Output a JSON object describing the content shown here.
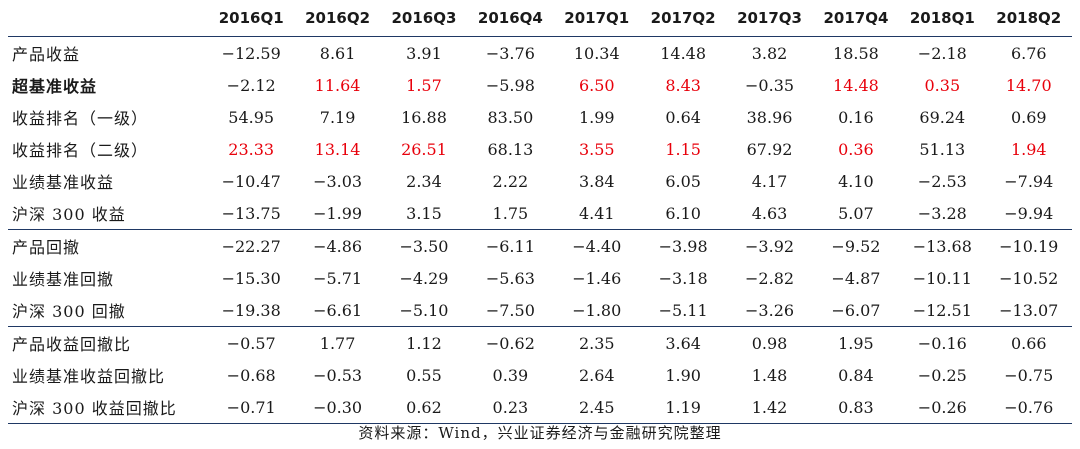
{
  "table": {
    "columns": [
      "2016Q1",
      "2016Q2",
      "2016Q3",
      "2016Q4",
      "2017Q1",
      "2017Q2",
      "2017Q3",
      "2017Q4",
      "2018Q1",
      "2018Q2"
    ],
    "highlight_color": "#e8000b",
    "rows": [
      {
        "label": "产品收益",
        "bold": false,
        "sep": false,
        "values": [
          "−12.59",
          "8.61",
          "3.91",
          "−3.76",
          "10.34",
          "14.48",
          "3.82",
          "18.58",
          "−2.18",
          "6.76"
        ],
        "highlight": []
      },
      {
        "label": "超基准收益",
        "bold": true,
        "sep": false,
        "values": [
          "−2.12",
          "11.64",
          "1.57",
          "−5.98",
          "6.50",
          "8.43",
          "−0.35",
          "14.48",
          "0.35",
          "14.70"
        ],
        "highlight": [
          1,
          2,
          4,
          5,
          7,
          8,
          9
        ]
      },
      {
        "label": "收益排名（一级）",
        "bold": false,
        "sep": false,
        "values": [
          "54.95",
          "7.19",
          "16.88",
          "83.50",
          "1.99",
          "0.64",
          "38.96",
          "0.16",
          "69.24",
          "0.69"
        ],
        "highlight": []
      },
      {
        "label": "收益排名（二级）",
        "bold": false,
        "sep": false,
        "values": [
          "23.33",
          "13.14",
          "26.51",
          "68.13",
          "3.55",
          "1.15",
          "67.92",
          "0.36",
          "51.13",
          "1.94"
        ],
        "highlight": [
          0,
          1,
          2,
          4,
          5,
          7,
          9
        ]
      },
      {
        "label": "业绩基准收益",
        "bold": false,
        "sep": false,
        "values": [
          "−10.47",
          "−3.03",
          "2.34",
          "2.22",
          "3.84",
          "6.05",
          "4.17",
          "4.10",
          "−2.53",
          "−7.94"
        ],
        "highlight": []
      },
      {
        "label": "沪深 300 收益",
        "bold": false,
        "sep": false,
        "values": [
          "−13.75",
          "−1.99",
          "3.15",
          "1.75",
          "4.41",
          "6.10",
          "4.63",
          "5.07",
          "−3.28",
          "−9.94"
        ],
        "highlight": []
      },
      {
        "label": "产品回撤",
        "bold": false,
        "sep": true,
        "values": [
          "−22.27",
          "−4.86",
          "−3.50",
          "−6.11",
          "−4.40",
          "−3.98",
          "−3.92",
          "−9.52",
          "−13.68",
          "−10.19"
        ],
        "highlight": []
      },
      {
        "label": "业绩基准回撤",
        "bold": false,
        "sep": false,
        "values": [
          "−15.30",
          "−5.71",
          "−4.29",
          "−5.63",
          "−1.46",
          "−3.18",
          "−2.82",
          "−4.87",
          "−10.11",
          "−10.52"
        ],
        "highlight": []
      },
      {
        "label": "沪深 300 回撤",
        "bold": false,
        "sep": false,
        "values": [
          "−19.38",
          "−6.61",
          "−5.10",
          "−7.50",
          "−1.80",
          "−5.11",
          "−3.26",
          "−6.07",
          "−12.51",
          "−13.07"
        ],
        "highlight": []
      },
      {
        "label": "产品收益回撤比",
        "bold": false,
        "sep": true,
        "values": [
          "−0.57",
          "1.77",
          "1.12",
          "−0.62",
          "2.35",
          "3.64",
          "0.98",
          "1.95",
          "−0.16",
          "0.66"
        ],
        "highlight": []
      },
      {
        "label": "业绩基准收益回撤比",
        "bold": false,
        "sep": false,
        "values": [
          "−0.68",
          "−0.53",
          "0.55",
          "0.39",
          "2.64",
          "1.90",
          "1.48",
          "0.84",
          "−0.25",
          "−0.75"
        ],
        "highlight": []
      },
      {
        "label": "沪深 300 收益回撤比",
        "bold": false,
        "sep": false,
        "values": [
          "−0.71",
          "−0.30",
          "0.62",
          "0.23",
          "2.45",
          "1.19",
          "1.42",
          "0.83",
          "−0.26",
          "−0.76"
        ],
        "highlight": []
      }
    ]
  },
  "source": "资料来源：Wind，兴业证券经济与金融研究院整理"
}
